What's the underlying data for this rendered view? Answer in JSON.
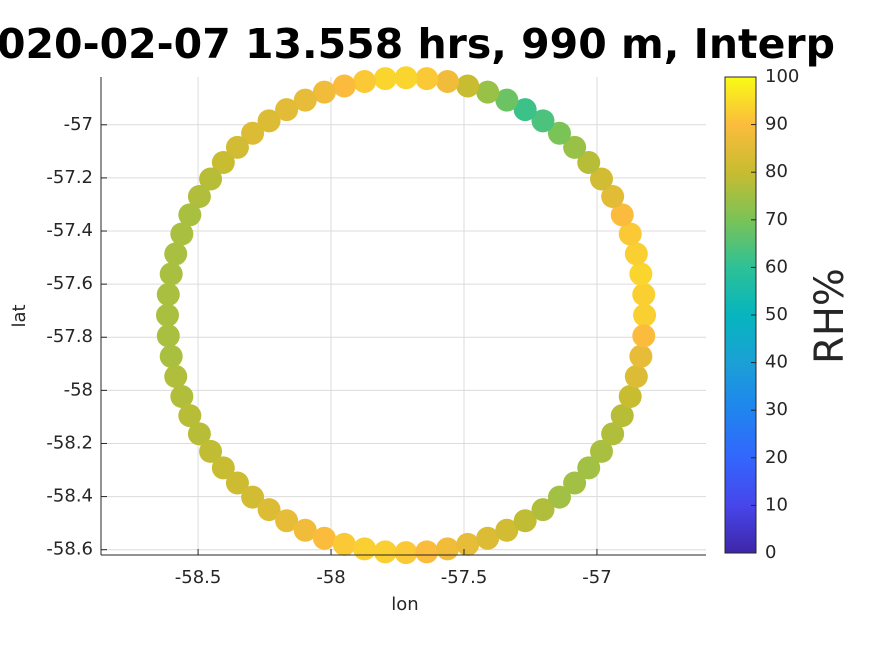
{
  "chart_data": {
    "type": "scatter",
    "title": "020-02-07 13.558 hrs, 990 m, Interp",
    "x_label": "lon",
    "y_label": "lat",
    "colorbar_label": "RH%",
    "xlim": [
      -58.865,
      -56.59
    ],
    "ylim": [
      -58.62,
      -56.82
    ],
    "xticks": [
      -58.5,
      -58,
      -57.5,
      -57
    ],
    "yticks": [
      -58.6,
      -58.4,
      -58.2,
      -58,
      -57.8,
      -57.6,
      -57.4,
      -57.2,
      -57
    ],
    "clim": [
      0,
      100
    ],
    "cticks": [
      0,
      10,
      20,
      30,
      40,
      50,
      60,
      70,
      80,
      90,
      100
    ],
    "colormap": [
      "#3e26a8",
      "#4746eb",
      "#3366fd",
      "#1f85ef",
      "#1ba0d6",
      "#06b5be",
      "#2dc196",
      "#7ac357",
      "#c8bc30",
      "#fbbc3d",
      "#f9fb14"
    ],
    "grid": true,
    "x": [
      -56.821,
      -56.824,
      -56.835,
      -56.852,
      -56.875,
      -56.905,
      -56.941,
      -56.983,
      -57.031,
      -57.084,
      -57.141,
      -57.203,
      -57.27,
      -57.339,
      -57.411,
      -57.486,
      -57.562,
      -57.64,
      -57.718,
      -57.796,
      -57.874,
      -57.95,
      -58.025,
      -58.097,
      -58.167,
      -58.233,
      -58.295,
      -58.352,
      -58.405,
      -58.453,
      -58.495,
      -58.531,
      -58.561,
      -58.584,
      -58.601,
      -58.612,
      -58.615,
      -58.612,
      -58.601,
      -58.584,
      -58.561,
      -58.531,
      -58.495,
      -58.453,
      -58.405,
      -58.352,
      -58.295,
      -58.233,
      -58.167,
      -58.097,
      -58.025,
      -57.95,
      -57.874,
      -57.796,
      -57.718,
      -57.64,
      -57.562,
      -57.486,
      -57.411,
      -57.339,
      -57.27,
      -57.203,
      -57.141,
      -57.084,
      -57.031,
      -56.983,
      -56.941,
      -56.905,
      -56.875,
      -56.852,
      -56.835,
      -56.824
    ],
    "y": [
      -57.717,
      -57.639,
      -57.562,
      -57.486,
      -57.411,
      -57.339,
      -57.27,
      -57.204,
      -57.142,
      -57.085,
      -57.032,
      -56.985,
      -56.943,
      -56.907,
      -56.877,
      -56.854,
      -56.837,
      -56.826,
      -56.823,
      -56.826,
      -56.837,
      -56.854,
      -56.877,
      -56.907,
      -56.943,
      -56.985,
      -57.032,
      -57.085,
      -57.142,
      -57.204,
      -57.27,
      -57.339,
      -57.411,
      -57.486,
      -57.562,
      -57.639,
      -57.717,
      -57.795,
      -57.872,
      -57.948,
      -58.023,
      -58.095,
      -58.164,
      -58.23,
      -58.292,
      -58.349,
      -58.402,
      -58.449,
      -58.491,
      -58.527,
      -58.557,
      -58.58,
      -58.597,
      -58.608,
      -58.611,
      -58.608,
      -58.597,
      -58.58,
      -58.557,
      -58.527,
      -58.491,
      -58.449,
      -58.402,
      -58.349,
      -58.292,
      -58.23,
      -58.164,
      -58.095,
      -58.023,
      -57.948,
      -57.872,
      -57.795
    ],
    "values": [
      93,
      93,
      94,
      93,
      92,
      90,
      85,
      82,
      78,
      74,
      70,
      64,
      62,
      68,
      74,
      80,
      88,
      92,
      94,
      94,
      92,
      90,
      88,
      86,
      85,
      84,
      84,
      82,
      80,
      78,
      77,
      76,
      76,
      76,
      76,
      76,
      76,
      76,
      76,
      77,
      77,
      78,
      78,
      79,
      80,
      81,
      82,
      84,
      86,
      88,
      90,
      92,
      93,
      93,
      92,
      90,
      88,
      86,
      84,
      82,
      79,
      77,
      75,
      75,
      75,
      76,
      77,
      78,
      80,
      84,
      86,
      90
    ]
  }
}
